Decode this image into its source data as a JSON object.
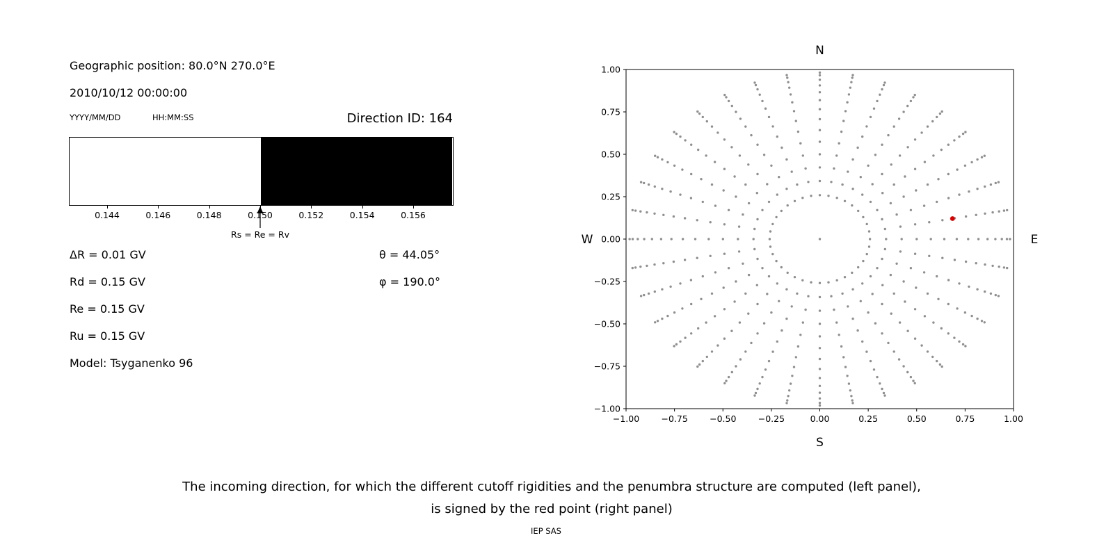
{
  "header": {
    "geo_position": "Geographic position: 80.0°N 270.0°E",
    "datetime": "2010/10/12 00:00:00",
    "date_format": "YYYY/MM/DD",
    "time_format": "HH:MM:SS",
    "direction_id": "Direction ID: 164"
  },
  "left_panel": {
    "params": [
      "ΔR = 0.01 GV",
      "Rd = 0.15 GV",
      "Re = 0.15 GV",
      "Ru = 0.15 GV",
      "Model: Tsyganenko 96"
    ],
    "angles": [
      "θ = 44.05°",
      "φ = 190.0°"
    ]
  },
  "caption": {
    "line1": "The incoming direction, for which the different cutoff rigidities and the penumbra structure are computed (left panel),",
    "line2": "is signed by the red point (right panel)",
    "credit": "IEP SAS"
  },
  "chart_data": [
    {
      "type": "bar",
      "name": "penumbra-structure",
      "x_range": [
        0.1425,
        0.1575
      ],
      "xticks": [
        0.144,
        0.146,
        0.148,
        0.15,
        0.152,
        0.154,
        0.156
      ],
      "xtick_labels": [
        "0.144",
        "0.146",
        "0.148",
        "0.150",
        "0.152",
        "0.154",
        "0.156"
      ],
      "segments": [
        {
          "from": 0.1425,
          "to": 0.15,
          "color": "#ffffff"
        },
        {
          "from": 0.15,
          "to": 0.1575,
          "color": "#000000"
        }
      ],
      "annotation": {
        "x": 0.15,
        "label": "Rs = Re = Rv"
      }
    },
    {
      "type": "scatter",
      "name": "incoming-direction-grid",
      "xlim": [
        -1,
        1
      ],
      "ylim": [
        -1,
        1
      ],
      "xticks": [
        -1.0,
        -0.75,
        -0.5,
        -0.25,
        0.0,
        0.25,
        0.5,
        0.75,
        1.0
      ],
      "yticks": [
        -1.0,
        -0.75,
        -0.5,
        -0.25,
        0.0,
        0.25,
        0.5,
        0.75,
        1.0
      ],
      "xtick_labels": [
        "−1.00",
        "−0.75",
        "−0.50",
        "−0.25",
        "0.00",
        "0.25",
        "0.50",
        "0.75",
        "1.00"
      ],
      "ytick_labels": [
        "−1.00",
        "−0.75",
        "−0.50",
        "−0.25",
        "0.00",
        "0.25",
        "0.50",
        "0.75",
        "1.00"
      ],
      "direction_labels": {
        "top": "N",
        "bottom": "S",
        "left": "W",
        "right": "E"
      },
      "grid_points": {
        "azimuth_start_deg": 0,
        "azimuth_step_deg": 10,
        "azimuth_count": 36,
        "zenith_angles_deg": [
          15,
          20,
          25,
          30,
          35,
          40,
          45,
          50,
          55,
          60,
          65,
          70,
          75,
          79
        ],
        "radius_rule": "sin(zenith)",
        "include_center_point": true,
        "color": "#8f8f8f",
        "marker_radius_px": 1.7
      },
      "red_point": {
        "x": 0.685,
        "y": 0.121,
        "color": "#dd0000",
        "marker_radius_px": 3.4
      }
    }
  ]
}
